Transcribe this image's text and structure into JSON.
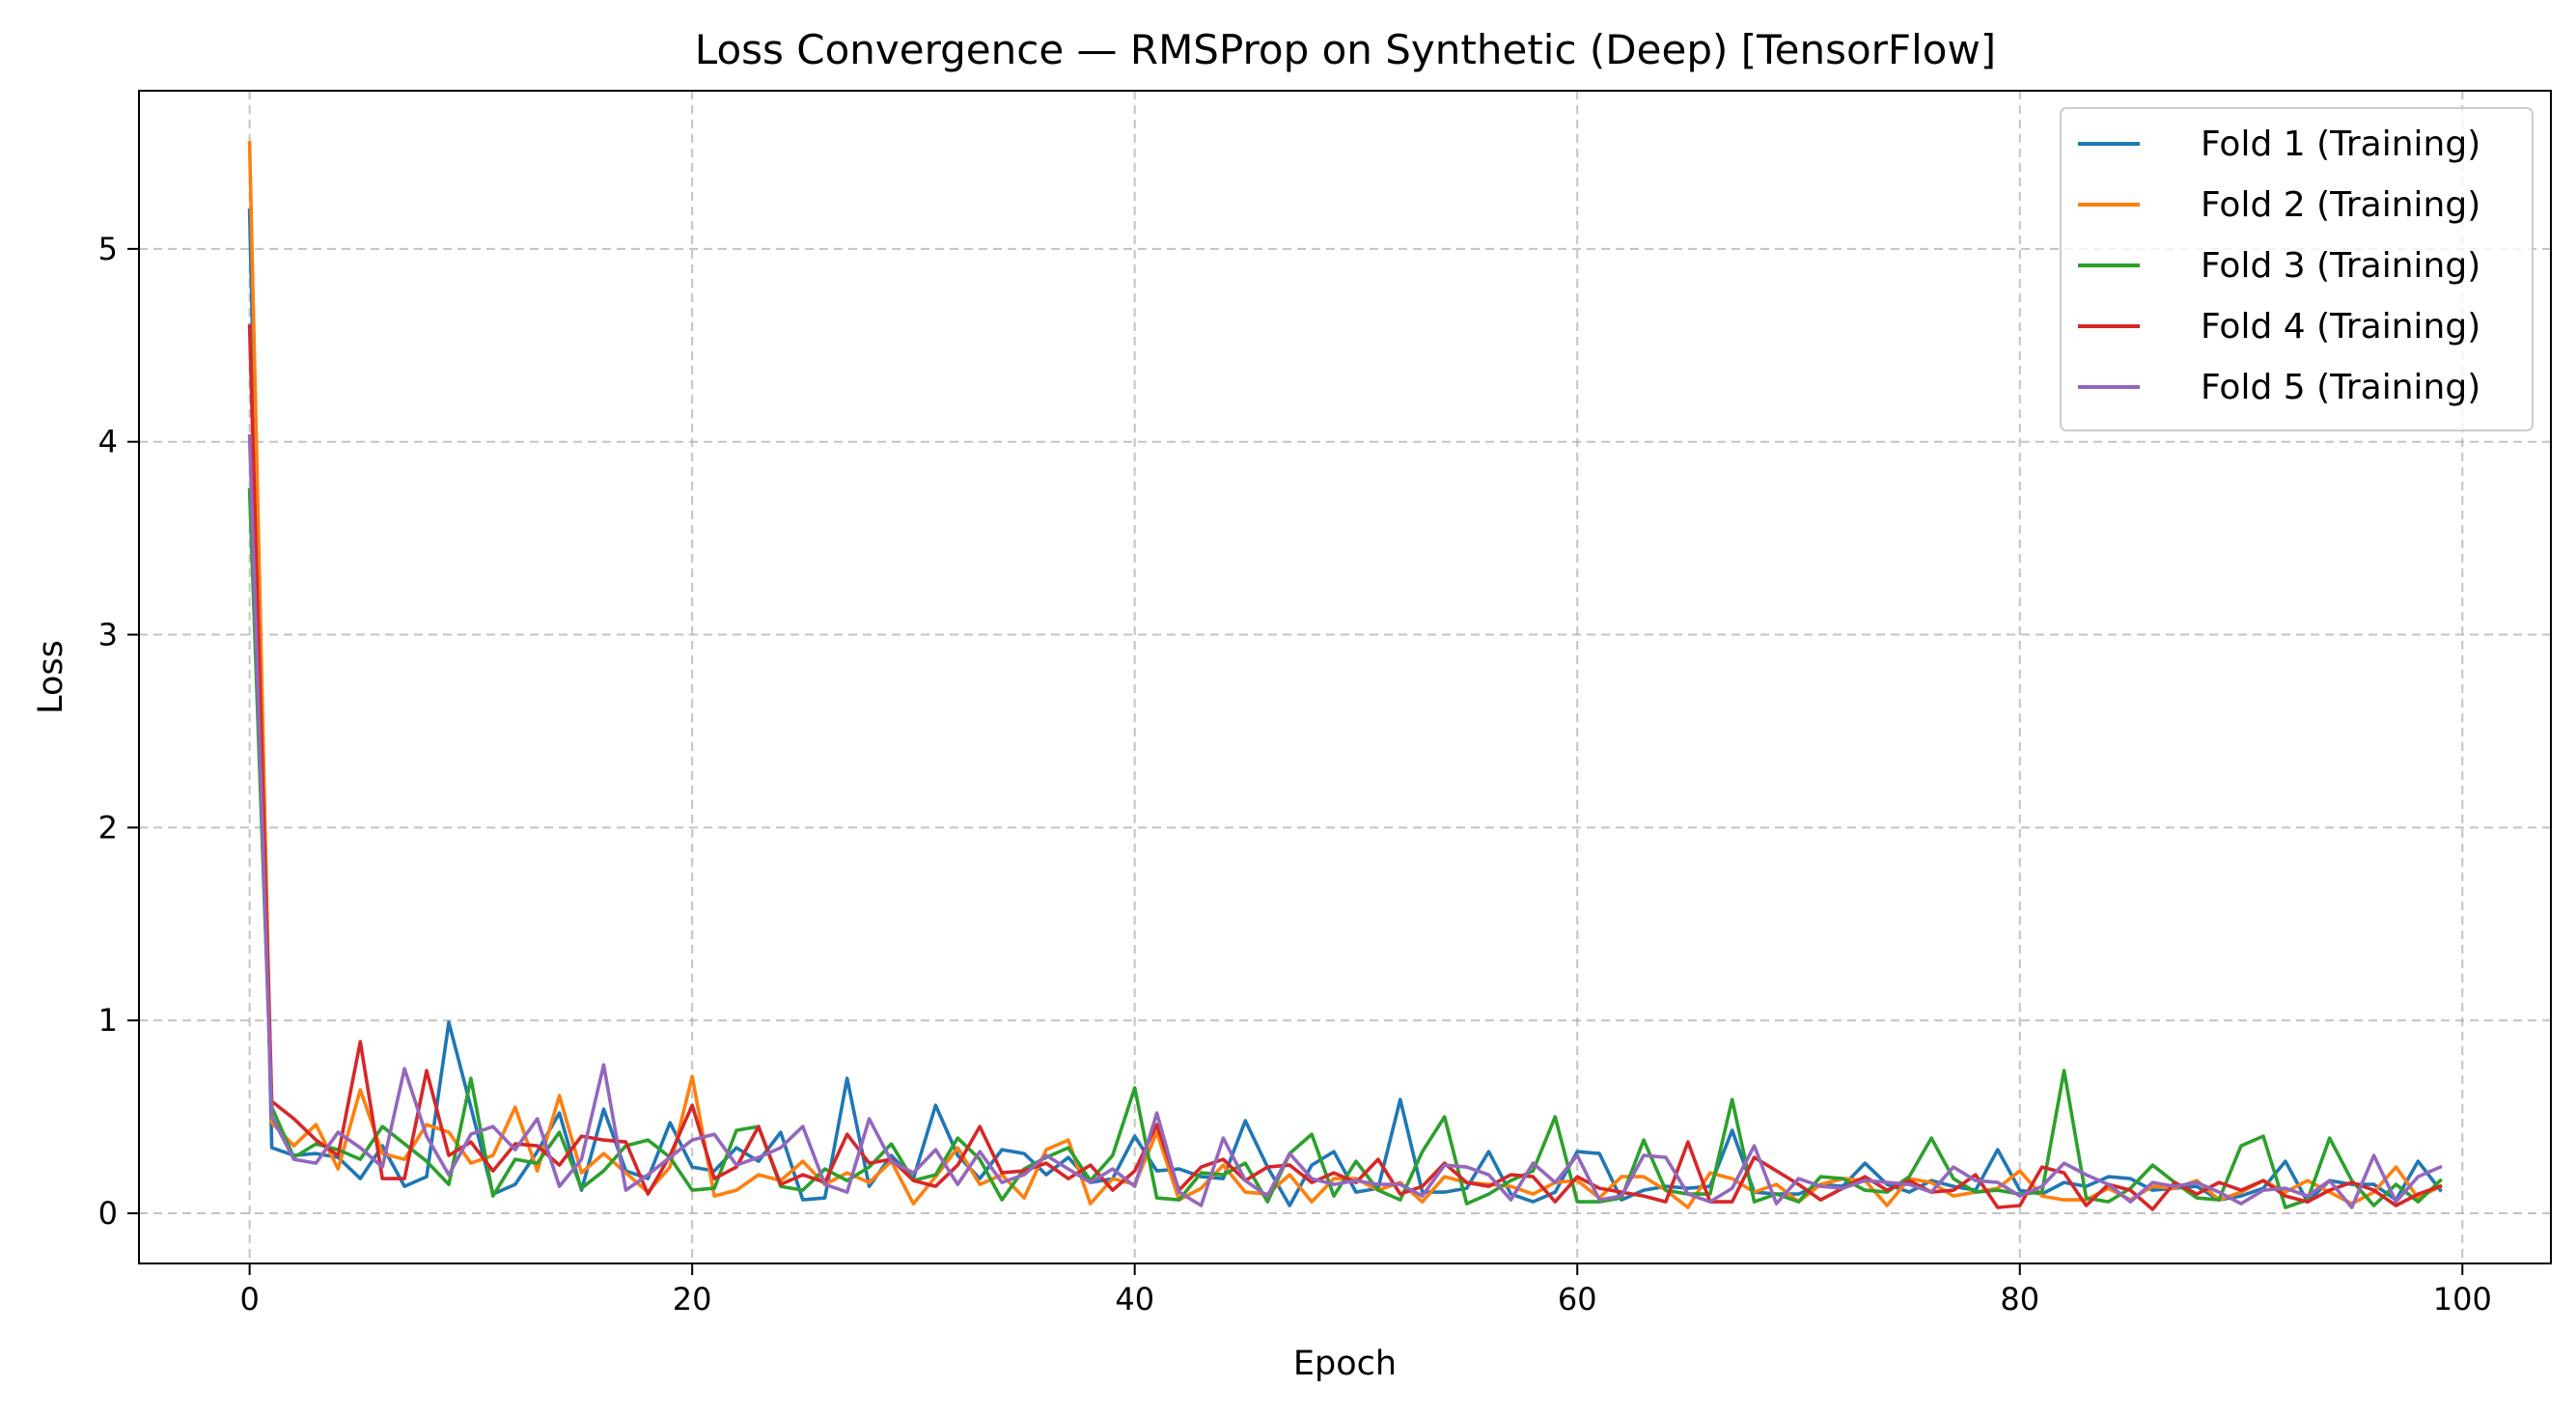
{
  "chart_data": {
    "type": "line",
    "title": "Loss Convergence — RMSProp on Synthetic (Deep) [TensorFlow]",
    "xlabel": "Epoch",
    "ylabel": "Loss",
    "xlim": [
      -5,
      104
    ],
    "ylim": [
      -0.26,
      5.82
    ],
    "x_ticks": [
      0,
      20,
      40,
      60,
      80,
      100
    ],
    "y_ticks": [
      0,
      1,
      2,
      3,
      4,
      5
    ],
    "grid": true,
    "legend_position": "top-right",
    "series": [
      {
        "name": "Fold 1 (Training)",
        "color": "#1f77b4",
        "values": [
          5.2,
          0.34,
          0.3,
          0.31,
          0.29,
          0.18,
          0.35,
          0.14,
          0.19,
          0.99,
          0.55,
          0.1,
          0.15,
          0.32,
          0.52,
          0.12,
          0.54,
          0.22,
          0.18,
          0.47,
          0.24,
          0.22,
          0.34,
          0.27,
          0.42,
          0.07,
          0.08,
          0.7,
          0.14,
          0.3,
          0.18,
          0.56,
          0.3,
          0.18,
          0.33,
          0.31,
          0.2,
          0.29,
          0.16,
          0.18,
          0.4,
          0.22,
          0.23,
          0.19,
          0.18,
          0.48,
          0.24,
          0.04,
          0.25,
          0.32,
          0.11,
          0.13,
          0.59,
          0.11,
          0.11,
          0.13,
          0.32,
          0.1,
          0.06,
          0.11,
          0.32,
          0.31,
          0.07,
          0.12,
          0.14,
          0.13,
          0.14,
          0.43,
          0.11,
          0.1,
          0.1,
          0.15,
          0.14,
          0.26,
          0.15,
          0.11,
          0.17,
          0.14,
          0.12,
          0.33,
          0.12,
          0.1,
          0.16,
          0.14,
          0.19,
          0.18,
          0.12,
          0.13,
          0.14,
          0.07,
          0.09,
          0.13,
          0.27,
          0.06,
          0.17,
          0.15,
          0.15,
          0.07,
          0.27,
          0.12
        ]
      },
      {
        "name": "Fold 2 (Training)",
        "color": "#ff7f0e",
        "values": [
          5.55,
          0.47,
          0.35,
          0.46,
          0.23,
          0.64,
          0.31,
          0.28,
          0.46,
          0.42,
          0.26,
          0.3,
          0.55,
          0.22,
          0.61,
          0.21,
          0.31,
          0.21,
          0.11,
          0.24,
          0.71,
          0.09,
          0.12,
          0.2,
          0.17,
          0.27,
          0.15,
          0.21,
          0.16,
          0.27,
          0.05,
          0.19,
          0.34,
          0.15,
          0.2,
          0.08,
          0.33,
          0.38,
          0.05,
          0.18,
          0.15,
          0.42,
          0.07,
          0.13,
          0.25,
          0.11,
          0.1,
          0.2,
          0.06,
          0.18,
          0.18,
          0.12,
          0.16,
          0.06,
          0.19,
          0.16,
          0.15,
          0.14,
          0.1,
          0.16,
          0.17,
          0.08,
          0.19,
          0.19,
          0.12,
          0.03,
          0.21,
          0.18,
          0.11,
          0.15,
          0.06,
          0.15,
          0.18,
          0.17,
          0.04,
          0.18,
          0.16,
          0.09,
          0.11,
          0.13,
          0.22,
          0.09,
          0.07,
          0.07,
          0.13,
          0.07,
          0.14,
          0.13,
          0.17,
          0.07,
          0.11,
          0.17,
          0.11,
          0.17,
          0.11,
          0.05,
          0.11,
          0.24,
          0.08,
          0.14
        ]
      },
      {
        "name": "Fold 3 (Training)",
        "color": "#2ca02c",
        "values": [
          3.75,
          0.55,
          0.29,
          0.36,
          0.33,
          0.28,
          0.45,
          0.36,
          0.27,
          0.15,
          0.7,
          0.09,
          0.28,
          0.26,
          0.42,
          0.13,
          0.22,
          0.35,
          0.38,
          0.29,
          0.12,
          0.13,
          0.43,
          0.45,
          0.14,
          0.12,
          0.23,
          0.17,
          0.24,
          0.36,
          0.17,
          0.2,
          0.39,
          0.28,
          0.07,
          0.23,
          0.29,
          0.34,
          0.17,
          0.3,
          0.65,
          0.08,
          0.07,
          0.21,
          0.2,
          0.26,
          0.06,
          0.31,
          0.41,
          0.09,
          0.27,
          0.12,
          0.07,
          0.32,
          0.5,
          0.05,
          0.1,
          0.17,
          0.22,
          0.5,
          0.06,
          0.06,
          0.08,
          0.38,
          0.12,
          0.1,
          0.1,
          0.59,
          0.06,
          0.1,
          0.06,
          0.19,
          0.18,
          0.12,
          0.11,
          0.19,
          0.39,
          0.18,
          0.11,
          0.12,
          0.1,
          0.11,
          0.74,
          0.08,
          0.06,
          0.13,
          0.25,
          0.16,
          0.08,
          0.07,
          0.35,
          0.4,
          0.03,
          0.07,
          0.39,
          0.17,
          0.04,
          0.15,
          0.06,
          0.17
        ]
      },
      {
        "name": "Fold 4 (Training)",
        "color": "#d62728",
        "values": [
          4.6,
          0.58,
          0.49,
          0.38,
          0.3,
          0.89,
          0.18,
          0.18,
          0.74,
          0.3,
          0.37,
          0.22,
          0.36,
          0.35,
          0.25,
          0.4,
          0.38,
          0.37,
          0.1,
          0.3,
          0.56,
          0.18,
          0.24,
          0.45,
          0.15,
          0.2,
          0.16,
          0.41,
          0.26,
          0.28,
          0.17,
          0.14,
          0.25,
          0.45,
          0.21,
          0.22,
          0.26,
          0.18,
          0.25,
          0.12,
          0.22,
          0.46,
          0.12,
          0.24,
          0.28,
          0.17,
          0.24,
          0.25,
          0.16,
          0.21,
          0.16,
          0.28,
          0.1,
          0.14,
          0.26,
          0.16,
          0.14,
          0.2,
          0.19,
          0.06,
          0.19,
          0.13,
          0.11,
          0.09,
          0.06,
          0.37,
          0.06,
          0.06,
          0.29,
          0.22,
          0.15,
          0.07,
          0.13,
          0.19,
          0.12,
          0.17,
          0.11,
          0.12,
          0.2,
          0.03,
          0.04,
          0.24,
          0.21,
          0.04,
          0.15,
          0.12,
          0.02,
          0.16,
          0.1,
          0.16,
          0.12,
          0.17,
          0.09,
          0.06,
          0.12,
          0.16,
          0.12,
          0.04,
          0.1,
          0.14
        ]
      },
      {
        "name": "Fold 5 (Training)",
        "color": "#9467bd",
        "values": [
          4.03,
          0.5,
          0.28,
          0.26,
          0.42,
          0.34,
          0.24,
          0.75,
          0.4,
          0.2,
          0.41,
          0.45,
          0.33,
          0.49,
          0.14,
          0.28,
          0.77,
          0.12,
          0.2,
          0.29,
          0.38,
          0.41,
          0.25,
          0.29,
          0.34,
          0.45,
          0.15,
          0.11,
          0.49,
          0.27,
          0.21,
          0.33,
          0.15,
          0.32,
          0.16,
          0.2,
          0.3,
          0.23,
          0.16,
          0.23,
          0.14,
          0.52,
          0.11,
          0.04,
          0.39,
          0.17,
          0.09,
          0.31,
          0.18,
          0.15,
          0.17,
          0.15,
          0.15,
          0.09,
          0.25,
          0.24,
          0.2,
          0.07,
          0.26,
          0.16,
          0.3,
          0.07,
          0.09,
          0.3,
          0.29,
          0.1,
          0.06,
          0.13,
          0.35,
          0.05,
          0.18,
          0.14,
          0.13,
          0.17,
          0.16,
          0.15,
          0.11,
          0.24,
          0.17,
          0.16,
          0.09,
          0.14,
          0.26,
          0.2,
          0.15,
          0.06,
          0.16,
          0.14,
          0.16,
          0.11,
          0.05,
          0.12,
          0.13,
          0.09,
          0.17,
          0.03,
          0.3,
          0.06,
          0.19,
          0.24
        ]
      }
    ]
  }
}
